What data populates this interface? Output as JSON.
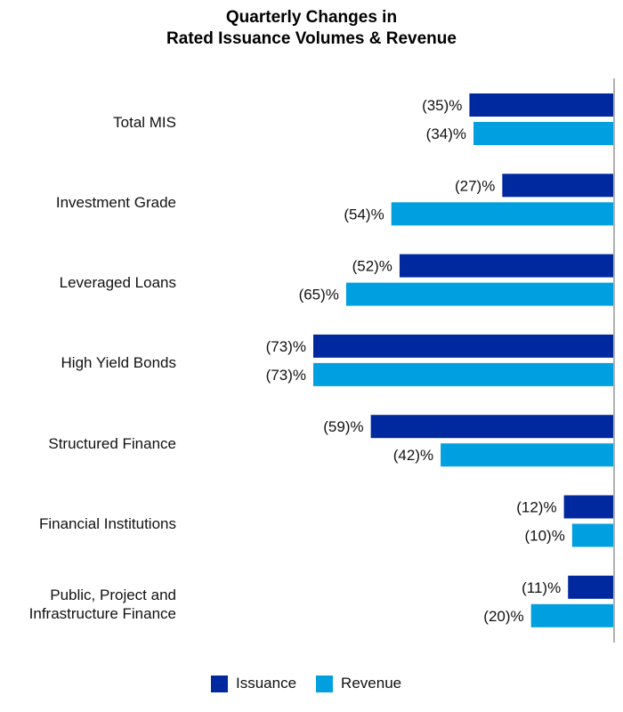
{
  "chart_data": {
    "type": "bar",
    "orientation": "horizontal",
    "title": "Quarterly Changes in\nRated Issuance Volumes & Revenue",
    "title_lines": [
      "Quarterly Changes in",
      "Rated Issuance Volumes & Revenue"
    ],
    "categories": [
      "Total MIS",
      "Investment Grade",
      "Leveraged Loans",
      "High Yield Bonds",
      "Structured Finance",
      "Financial Institutions",
      "Public, Project and Infrastructure Finance"
    ],
    "series": [
      {
        "name": "Issuance",
        "color": "#0029a0",
        "values": [
          -35,
          -27,
          -52,
          -73,
          -59,
          -12,
          -11
        ],
        "labels": [
          "(35)%",
          "(27)%",
          "(52)%",
          "(73)%",
          "(59)%",
          "(12)%",
          "(11)%"
        ]
      },
      {
        "name": "Revenue",
        "color": "#009fdf",
        "values": [
          -34,
          -54,
          -65,
          -73,
          -42,
          -10,
          -20
        ],
        "labels": [
          "(34)%",
          "(54)%",
          "(65)%",
          "(73)%",
          "(42)%",
          "(10)%",
          "(20)%"
        ]
      }
    ],
    "unit": "%",
    "xlim": [
      -73,
      0
    ],
    "grid": false,
    "legend": "bottom"
  }
}
